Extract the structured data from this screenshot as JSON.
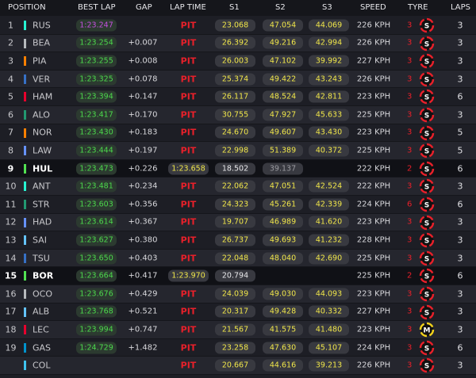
{
  "header": {
    "position": "POSITION",
    "best_lap": "BEST LAP",
    "gap": "GAP",
    "lap_time": "LAP TIME",
    "s1": "S1",
    "s2": "S2",
    "s3": "S3",
    "speed": "SPEED",
    "tyre": "TYRE",
    "laps": "LAPS"
  },
  "tyre_colors": {
    "S": "#e8202a",
    "M": "#f2d21b"
  },
  "rows": [
    {
      "position": "1",
      "team_color": "#27f4d2",
      "driver": "RUS",
      "best_lap": "1:23.247",
      "best_lap_color": "#c650e0",
      "lap_time": "PIT",
      "s1": "23.068",
      "s2": "47.054",
      "s3": "44.069",
      "speed": "226 KPH",
      "tyre_age": "3",
      "tyre": "S",
      "laps": "3"
    },
    {
      "position": "2",
      "team_color": "#b6babd",
      "driver": "BEA",
      "best_lap": "1:23.254",
      "best_lap_color": "#4cd94c",
      "gap": "+0.007",
      "lap_time": "PIT",
      "s1": "26.392",
      "s2": "49.216",
      "s3": "42.994",
      "speed": "226 KPH",
      "tyre_age": "3",
      "tyre": "S",
      "laps": "3"
    },
    {
      "position": "3",
      "team_color": "#ff8000",
      "driver": "PIA",
      "best_lap": "1:23.255",
      "best_lap_color": "#4cd94c",
      "gap": "+0.008",
      "lap_time": "PIT",
      "s1": "26.003",
      "s2": "47.102",
      "s3": "39.992",
      "speed": "227 KPH",
      "tyre_age": "3",
      "tyre": "S",
      "laps": "3"
    },
    {
      "position": "4",
      "team_color": "#3671c6",
      "driver": "VER",
      "best_lap": "1:23.325",
      "best_lap_color": "#4cd94c",
      "gap": "+0.078",
      "lap_time": "PIT",
      "s1": "25.374",
      "s2": "49.422",
      "s3": "43.243",
      "speed": "226 KPH",
      "tyre_age": "3",
      "tyre": "S",
      "laps": "3"
    },
    {
      "position": "5",
      "team_color": "#e8002d",
      "driver": "HAM",
      "best_lap": "1:23.394",
      "best_lap_color": "#4cd94c",
      "gap": "+0.147",
      "lap_time": "PIT",
      "s1": "26.117",
      "s2": "48.524",
      "s3": "42.811",
      "speed": "223 KPH",
      "tyre_age": "3",
      "tyre": "S",
      "laps": "6"
    },
    {
      "position": "6",
      "team_color": "#229971",
      "driver": "ALO",
      "best_lap": "1:23.417",
      "best_lap_color": "#4cd94c",
      "gap": "+0.170",
      "lap_time": "PIT",
      "s1": "30.755",
      "s2": "47.927",
      "s3": "45.633",
      "speed": "225 KPH",
      "tyre_age": "3",
      "tyre": "S",
      "laps": "3"
    },
    {
      "position": "7",
      "team_color": "#ff8000",
      "driver": "NOR",
      "best_lap": "1:23.430",
      "best_lap_color": "#4cd94c",
      "gap": "+0.183",
      "lap_time": "PIT",
      "s1": "24.670",
      "s2": "49.607",
      "s3": "43.430",
      "speed": "223 KPH",
      "tyre_age": "3",
      "tyre": "S",
      "laps": "5"
    },
    {
      "position": "8",
      "team_color": "#6692ff",
      "driver": "LAW",
      "best_lap": "1:23.444",
      "best_lap_color": "#4cd94c",
      "gap": "+0.197",
      "lap_time": "PIT",
      "s1": "22.998",
      "s2": "51.389",
      "s3": "40.372",
      "speed": "225 KPH",
      "tyre_age": "3",
      "tyre": "S",
      "laps": "5"
    },
    {
      "position": "9",
      "team_color": "#52e252",
      "driver": "HUL",
      "best_lap": "1:23.473",
      "best_lap_color": "#4cd94c",
      "gap": "+0.226",
      "lap_time": "1:23.658",
      "s1": "18.502",
      "s2": "39.137",
      "speed": "222 KPH",
      "tyre_age": "2",
      "tyre": "S",
      "laps": "6",
      "active": true
    },
    {
      "position": "10",
      "team_color": "#27f4d2",
      "driver": "ANT",
      "best_lap": "1:23.481",
      "best_lap_color": "#4cd94c",
      "gap": "+0.234",
      "lap_time": "PIT",
      "s1": "22.062",
      "s2": "47.051",
      "s3": "42.524",
      "speed": "222 KPH",
      "tyre_age": "3",
      "tyre": "S",
      "laps": "3"
    },
    {
      "position": "11",
      "team_color": "#229971",
      "driver": "STR",
      "best_lap": "1:23.603",
      "best_lap_color": "#4cd94c",
      "gap": "+0.356",
      "lap_time": "PIT",
      "s1": "24.323",
      "s2": "45.261",
      "s3": "42.339",
      "speed": "224 KPH",
      "tyre_age": "6",
      "tyre": "S",
      "laps": "6"
    },
    {
      "position": "12",
      "team_color": "#6692ff",
      "driver": "HAD",
      "best_lap": "1:23.614",
      "best_lap_color": "#4cd94c",
      "gap": "+0.367",
      "lap_time": "PIT",
      "s1": "19.707",
      "s2": "46.989",
      "s3": "41.620",
      "speed": "223 KPH",
      "tyre_age": "3",
      "tyre": "S",
      "laps": "3"
    },
    {
      "position": "13",
      "team_color": "#64c4ff",
      "driver": "SAI",
      "best_lap": "1:23.627",
      "best_lap_color": "#4cd94c",
      "gap": "+0.380",
      "lap_time": "PIT",
      "s1": "26.737",
      "s2": "49.693",
      "s3": "41.232",
      "speed": "228 KPH",
      "tyre_age": "3",
      "tyre": "S",
      "laps": "3"
    },
    {
      "position": "14",
      "team_color": "#3671c6",
      "driver": "TSU",
      "best_lap": "1:23.650",
      "best_lap_color": "#4cd94c",
      "gap": "+0.403",
      "lap_time": "PIT",
      "s1": "22.048",
      "s2": "48.040",
      "s3": "42.690",
      "speed": "225 KPH",
      "tyre_age": "3",
      "tyre": "S",
      "laps": "3"
    },
    {
      "position": "15",
      "team_color": "#52e252",
      "driver": "BOR",
      "best_lap": "1:23.664",
      "best_lap_color": "#4cd94c",
      "gap": "+0.417",
      "lap_time": "1:23.970",
      "s1": "20.794",
      "speed": "225 KPH",
      "tyre_age": "2",
      "tyre": "S",
      "laps": "6",
      "active": true
    },
    {
      "position": "16",
      "team_color": "#b6babd",
      "driver": "OCO",
      "best_lap": "1:23.676",
      "best_lap_color": "#4cd94c",
      "gap": "+0.429",
      "lap_time": "PIT",
      "s1": "24.039",
      "s2": "49.030",
      "s3": "44.093",
      "speed": "223 KPH",
      "tyre_age": "3",
      "tyre": "S",
      "laps": "3"
    },
    {
      "position": "17",
      "team_color": "#64c4ff",
      "driver": "ALB",
      "best_lap": "1:23.768",
      "best_lap_color": "#4cd94c",
      "gap": "+0.521",
      "lap_time": "PIT",
      "s1": "20.317",
      "s2": "49.428",
      "s3": "40.332",
      "speed": "227 KPH",
      "tyre_age": "3",
      "tyre": "S",
      "laps": "3"
    },
    {
      "position": "18",
      "team_color": "#e8002d",
      "driver": "LEC",
      "best_lap": "1:23.994",
      "best_lap_color": "#4cd94c",
      "gap": "+0.747",
      "lap_time": "PIT",
      "s1": "21.567",
      "s2": "41.575",
      "s3": "41.480",
      "speed": "223 KPH",
      "tyre_age": "3",
      "tyre": "M",
      "laps": "3"
    },
    {
      "position": "19",
      "team_color": "#0093cc",
      "driver": "GAS",
      "best_lap": "1:24.729",
      "best_lap_color": "#4cd94c",
      "gap": "+1.482",
      "lap_time": "PIT",
      "s1": "23.258",
      "s2": "47.630",
      "s3": "45.107",
      "speed": "224 KPH",
      "tyre_age": "3",
      "tyre": "S",
      "laps": "6"
    },
    {
      "team_color": "#3fc4f0",
      "driver": "COL",
      "lap_time": "PIT",
      "s1": "20.667",
      "s2": "44.616",
      "s3": "39.213",
      "speed": "226 KPH",
      "tyre_age": "3",
      "tyre": "S",
      "laps": "3"
    }
  ]
}
